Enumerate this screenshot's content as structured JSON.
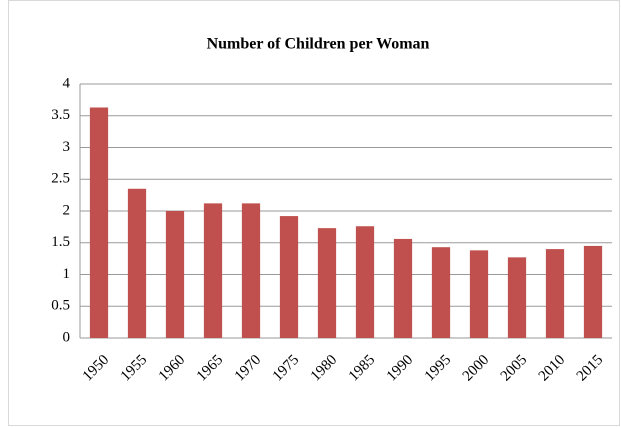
{
  "chart_data": {
    "type": "bar",
    "title": "Number of Children per Woman",
    "categories": [
      "1950",
      "1955",
      "1960",
      "1965",
      "1970",
      "1975",
      "1980",
      "1985",
      "1990",
      "1995",
      "2000",
      "2005",
      "2010",
      "2015"
    ],
    "values": [
      3.63,
      2.35,
      2.0,
      2.12,
      2.12,
      1.92,
      1.73,
      1.76,
      1.56,
      1.43,
      1.38,
      1.27,
      1.4,
      1.45
    ],
    "color": "#c0504d",
    "ylim": [
      0,
      4
    ],
    "yticks": [
      0,
      0.5,
      1,
      1.5,
      2,
      2.5,
      3,
      3.5,
      4
    ],
    "grid": true
  }
}
